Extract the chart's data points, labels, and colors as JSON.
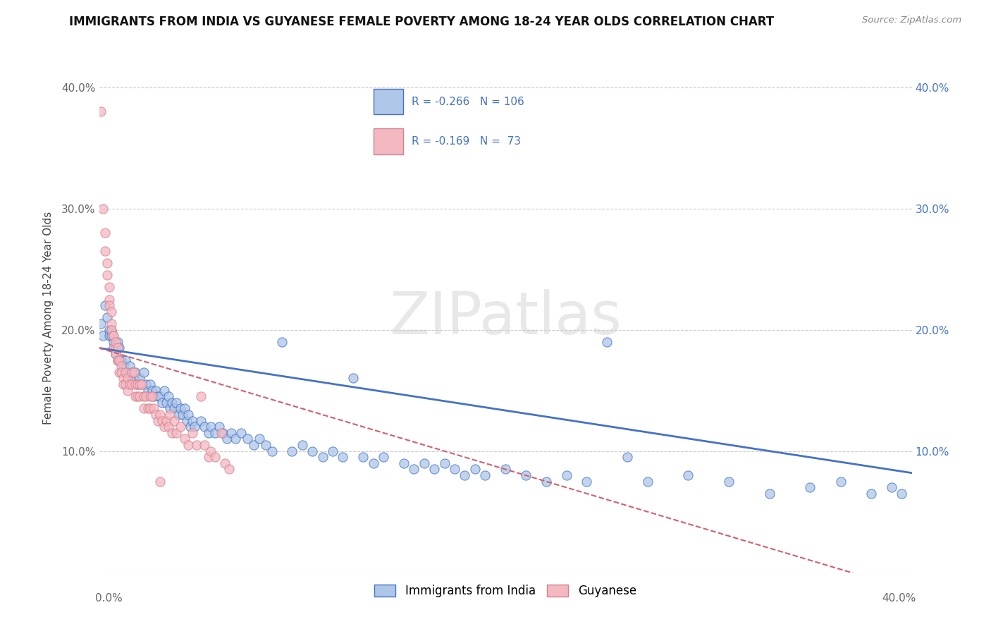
{
  "title": "IMMIGRANTS FROM INDIA VS GUYANESE FEMALE POVERTY AMONG 18-24 YEAR OLDS CORRELATION CHART",
  "source": "Source: ZipAtlas.com",
  "ylabel": "Female Poverty Among 18-24 Year Olds",
  "xlim": [
    0,
    0.4
  ],
  "ylim": [
    0,
    0.42
  ],
  "yticks": [
    0.0,
    0.1,
    0.2,
    0.3,
    0.4
  ],
  "ytick_labels_left": [
    "",
    "10.0%",
    "20.0%",
    "30.0%",
    "40.0%"
  ],
  "ytick_labels_right": [
    "",
    "10.0%",
    "20.0%",
    "30.0%",
    "40.0%"
  ],
  "legend_india": "Immigrants from India",
  "legend_guyanese": "Guyanese",
  "R_india": -0.266,
  "N_india": 106,
  "R_guyanese": -0.169,
  "N_guyanese": 73,
  "india_fill": "#aec6e8",
  "india_edge": "#4472c4",
  "guyanese_fill": "#f4b8c1",
  "guyanese_edge": "#d48090",
  "india_line_color": "#4472c4",
  "guyanese_line_color": "#d06070",
  "india_scatter": [
    [
      0.001,
      0.205
    ],
    [
      0.002,
      0.195
    ],
    [
      0.003,
      0.22
    ],
    [
      0.004,
      0.21
    ],
    [
      0.005,
      0.2
    ],
    [
      0.005,
      0.195
    ],
    [
      0.006,
      0.2
    ],
    [
      0.006,
      0.195
    ],
    [
      0.007,
      0.185
    ],
    [
      0.007,
      0.19
    ],
    [
      0.008,
      0.18
    ],
    [
      0.008,
      0.185
    ],
    [
      0.009,
      0.19
    ],
    [
      0.009,
      0.175
    ],
    [
      0.01,
      0.185
    ],
    [
      0.01,
      0.175
    ],
    [
      0.011,
      0.175
    ],
    [
      0.012,
      0.17
    ],
    [
      0.013,
      0.175
    ],
    [
      0.014,
      0.165
    ],
    [
      0.015,
      0.17
    ],
    [
      0.015,
      0.16
    ],
    [
      0.016,
      0.165
    ],
    [
      0.017,
      0.16
    ],
    [
      0.018,
      0.165
    ],
    [
      0.019,
      0.155
    ],
    [
      0.02,
      0.16
    ],
    [
      0.021,
      0.155
    ],
    [
      0.022,
      0.165
    ],
    [
      0.023,
      0.155
    ],
    [
      0.024,
      0.15
    ],
    [
      0.025,
      0.155
    ],
    [
      0.026,
      0.15
    ],
    [
      0.027,
      0.145
    ],
    [
      0.028,
      0.15
    ],
    [
      0.029,
      0.145
    ],
    [
      0.03,
      0.145
    ],
    [
      0.031,
      0.14
    ],
    [
      0.032,
      0.15
    ],
    [
      0.033,
      0.14
    ],
    [
      0.034,
      0.145
    ],
    [
      0.035,
      0.135
    ],
    [
      0.036,
      0.14
    ],
    [
      0.037,
      0.135
    ],
    [
      0.038,
      0.14
    ],
    [
      0.039,
      0.13
    ],
    [
      0.04,
      0.135
    ],
    [
      0.041,
      0.13
    ],
    [
      0.042,
      0.135
    ],
    [
      0.043,
      0.125
    ],
    [
      0.044,
      0.13
    ],
    [
      0.045,
      0.12
    ],
    [
      0.046,
      0.125
    ],
    [
      0.047,
      0.12
    ],
    [
      0.05,
      0.125
    ],
    [
      0.052,
      0.12
    ],
    [
      0.054,
      0.115
    ],
    [
      0.055,
      0.12
    ],
    [
      0.057,
      0.115
    ],
    [
      0.059,
      0.12
    ],
    [
      0.061,
      0.115
    ],
    [
      0.063,
      0.11
    ],
    [
      0.065,
      0.115
    ],
    [
      0.067,
      0.11
    ],
    [
      0.07,
      0.115
    ],
    [
      0.073,
      0.11
    ],
    [
      0.076,
      0.105
    ],
    [
      0.079,
      0.11
    ],
    [
      0.082,
      0.105
    ],
    [
      0.085,
      0.1
    ],
    [
      0.09,
      0.19
    ],
    [
      0.095,
      0.1
    ],
    [
      0.1,
      0.105
    ],
    [
      0.105,
      0.1
    ],
    [
      0.11,
      0.095
    ],
    [
      0.115,
      0.1
    ],
    [
      0.12,
      0.095
    ],
    [
      0.125,
      0.16
    ],
    [
      0.13,
      0.095
    ],
    [
      0.135,
      0.09
    ],
    [
      0.14,
      0.095
    ],
    [
      0.15,
      0.09
    ],
    [
      0.155,
      0.085
    ],
    [
      0.16,
      0.09
    ],
    [
      0.165,
      0.085
    ],
    [
      0.17,
      0.09
    ],
    [
      0.175,
      0.085
    ],
    [
      0.18,
      0.08
    ],
    [
      0.185,
      0.085
    ],
    [
      0.19,
      0.08
    ],
    [
      0.2,
      0.085
    ],
    [
      0.21,
      0.08
    ],
    [
      0.22,
      0.075
    ],
    [
      0.23,
      0.08
    ],
    [
      0.24,
      0.075
    ],
    [
      0.25,
      0.19
    ],
    [
      0.26,
      0.095
    ],
    [
      0.27,
      0.075
    ],
    [
      0.29,
      0.08
    ],
    [
      0.31,
      0.075
    ],
    [
      0.33,
      0.065
    ],
    [
      0.35,
      0.07
    ],
    [
      0.365,
      0.075
    ],
    [
      0.38,
      0.065
    ],
    [
      0.39,
      0.07
    ],
    [
      0.395,
      0.065
    ]
  ],
  "guyanese_scatter": [
    [
      0.001,
      0.38
    ],
    [
      0.002,
      0.3
    ],
    [
      0.003,
      0.28
    ],
    [
      0.003,
      0.265
    ],
    [
      0.004,
      0.255
    ],
    [
      0.004,
      0.245
    ],
    [
      0.005,
      0.235
    ],
    [
      0.005,
      0.225
    ],
    [
      0.005,
      0.22
    ],
    [
      0.006,
      0.215
    ],
    [
      0.006,
      0.205
    ],
    [
      0.006,
      0.2
    ],
    [
      0.007,
      0.195
    ],
    [
      0.007,
      0.195
    ],
    [
      0.007,
      0.185
    ],
    [
      0.008,
      0.19
    ],
    [
      0.008,
      0.18
    ],
    [
      0.009,
      0.185
    ],
    [
      0.009,
      0.175
    ],
    [
      0.01,
      0.175
    ],
    [
      0.01,
      0.165
    ],
    [
      0.011,
      0.17
    ],
    [
      0.011,
      0.165
    ],
    [
      0.012,
      0.16
    ],
    [
      0.012,
      0.155
    ],
    [
      0.013,
      0.165
    ],
    [
      0.013,
      0.155
    ],
    [
      0.014,
      0.16
    ],
    [
      0.014,
      0.15
    ],
    [
      0.015,
      0.155
    ],
    [
      0.016,
      0.165
    ],
    [
      0.016,
      0.155
    ],
    [
      0.017,
      0.165
    ],
    [
      0.018,
      0.155
    ],
    [
      0.018,
      0.145
    ],
    [
      0.019,
      0.155
    ],
    [
      0.019,
      0.145
    ],
    [
      0.02,
      0.155
    ],
    [
      0.02,
      0.145
    ],
    [
      0.021,
      0.155
    ],
    [
      0.022,
      0.145
    ],
    [
      0.022,
      0.135
    ],
    [
      0.023,
      0.145
    ],
    [
      0.024,
      0.135
    ],
    [
      0.025,
      0.145
    ],
    [
      0.025,
      0.135
    ],
    [
      0.026,
      0.145
    ],
    [
      0.027,
      0.135
    ],
    [
      0.028,
      0.13
    ],
    [
      0.029,
      0.125
    ],
    [
      0.03,
      0.13
    ],
    [
      0.031,
      0.125
    ],
    [
      0.032,
      0.12
    ],
    [
      0.033,
      0.125
    ],
    [
      0.034,
      0.12
    ],
    [
      0.035,
      0.13
    ],
    [
      0.036,
      0.115
    ],
    [
      0.037,
      0.125
    ],
    [
      0.038,
      0.115
    ],
    [
      0.04,
      0.12
    ],
    [
      0.042,
      0.11
    ],
    [
      0.044,
      0.105
    ],
    [
      0.046,
      0.115
    ],
    [
      0.048,
      0.105
    ],
    [
      0.05,
      0.145
    ],
    [
      0.052,
      0.105
    ],
    [
      0.054,
      0.095
    ],
    [
      0.055,
      0.1
    ],
    [
      0.057,
      0.095
    ],
    [
      0.06,
      0.115
    ],
    [
      0.062,
      0.09
    ],
    [
      0.064,
      0.085
    ],
    [
      0.03,
      0.075
    ]
  ]
}
